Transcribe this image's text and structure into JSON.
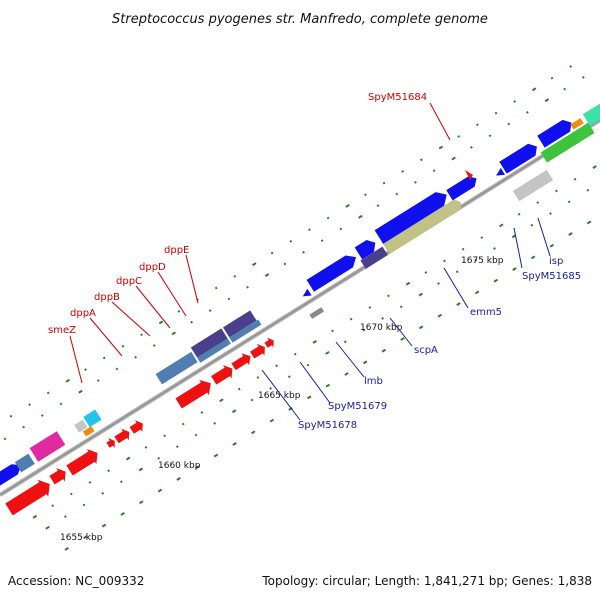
{
  "title": "Streptococcus pyogenes str. Manfredo, complete genome",
  "footer": {
    "accession": "Accession: NC_009332",
    "topology": "Topology: circular; Length: 1,841,271 bp; Genes: 1,838"
  },
  "scale": {
    "ticks": [
      "1655 kbp",
      "1660 kbp",
      "1665 kbp",
      "1670 kbp",
      "1675 kbp"
    ]
  },
  "labels_red": [
    "smeZ",
    "dppA",
    "dppB",
    "dppC",
    "dppD",
    "dppE",
    "SpyM51684"
  ],
  "labels_blue": [
    "SpyM51678",
    "SpyM51679",
    "lmb",
    "scpA",
    "emm5",
    "SpyM51685",
    "isp"
  ],
  "colors": {
    "forward_gene": "#1010ee",
    "reverse_gene": "#ee1111",
    "backbone": "#9a9a9a",
    "tick_green": "#2d7d2d",
    "label_red": "#cc0000",
    "label_blue": "#1a1aa8",
    "steel_blue": "#4f7fb0",
    "slate": "#4a3f8c",
    "olive": "#c2c286",
    "magenta": "#e22aa0",
    "cyan": "#22c4ea",
    "orange": "#f08a10",
    "green": "#3cc43c",
    "mint": "#3ae2a6",
    "grey": "#c4c4c4"
  }
}
